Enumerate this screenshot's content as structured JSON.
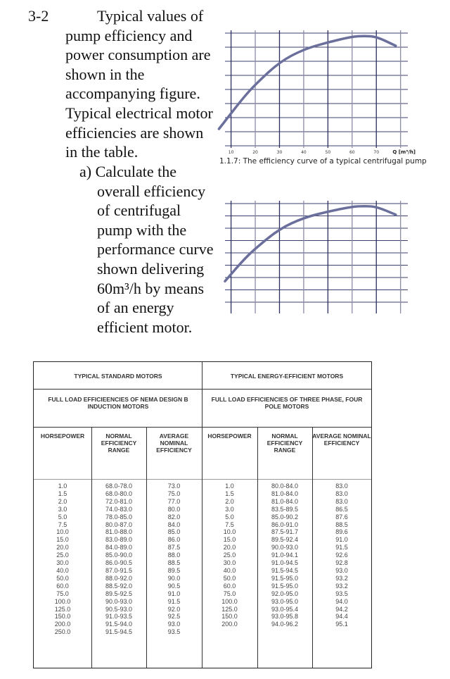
{
  "problem": {
    "number": "3-2",
    "lines": [
      "Typical values of",
      "pump efficiency and",
      "power consumption are",
      "shown in the",
      "accompanying figure.",
      "Typical electrical motor",
      "efficiencies are shown",
      "in the table."
    ],
    "part_a": [
      "a) Calculate the",
      "overall efficiency",
      "of centrifugal",
      "pump with the",
      "performance curve",
      "shown delivering",
      "60m³/h by means",
      "of an energy",
      "efficient motor."
    ]
  },
  "chart_data": [
    {
      "type": "line",
      "title": "",
      "caption": "1.1.7: The efficiency curve of a typical centrifugal pump",
      "xlabel": "Q [m³/h]",
      "xticks": [
        "10",
        "20",
        "30",
        "40",
        "50",
        "60",
        "70"
      ],
      "xlim": [
        7.5,
        83
      ],
      "ylim": [
        0,
        8
      ],
      "grid": true,
      "line_color": "#6b6f9c",
      "x": [
        5,
        7.5,
        15,
        20,
        30,
        40,
        50,
        60,
        65,
        70,
        78
      ],
      "y": [
        1.2,
        1.75,
        3.4,
        4.35,
        5.95,
        6.85,
        7.35,
        7.75,
        7.8,
        7.75,
        7.1
      ]
    },
    {
      "type": "line",
      "title": "",
      "xlim": [
        7.5,
        83
      ],
      "ylim": [
        0,
        8
      ],
      "grid": true,
      "line_color": "#6b6f9c",
      "x": [
        7.5,
        15,
        20,
        30,
        40,
        50,
        60,
        65,
        70,
        78
      ],
      "y": [
        1.7,
        3.4,
        4.35,
        5.95,
        6.85,
        7.35,
        7.75,
        7.8,
        7.75,
        7.1
      ]
    }
  ],
  "table": {
    "group_standard": "TYPICAL STANDARD MOTORS",
    "group_efficient": "TYPICAL ENERGY-EFFICIENT MOTORS",
    "sub_standard": "FULL LOAD EFFICIEENCIES OF NEMA DESIGN B INDUCTION MOTORS",
    "sub_efficient": "FULL LOAD EFFICIENCIES OF THREE PHASE, FOUR POLE MOTORS",
    "headers": [
      "HORSEPOWER",
      "NORMAL EFFICIENCY RANGE",
      "AVERAGE NOMINAL EFFICIENCY",
      "HORSEPOWER",
      "NORMAL EFFICIENCY RANGE",
      "AVERAGE NOMINAL EFFICIENCY"
    ],
    "standard": {
      "hp": [
        "1.0",
        "1.5",
        "2.0",
        "3.0",
        "5.0",
        "7.5",
        "10.0",
        "15.0",
        "20.0",
        "25.0",
        "30.0",
        "40.0",
        "50.0",
        "60.0",
        "75.0",
        "100.0",
        "125.0",
        "150.0",
        "200.0",
        "250.0"
      ],
      "range": [
        "68.0-78.0",
        "68.0-80.0",
        "72.0-81.0",
        "74.0-83.0",
        "78.0-85.0",
        "80.0-87.0",
        "81.0-88.0",
        "83.0-89.0",
        "84.0-89.0",
        "85.0-90.0",
        "86.0-90.5",
        "87.0-91.5",
        "88.0-92.0",
        "88.5-92.0",
        "89.5-92.5",
        "90.0-93.0",
        "90.5-93.0",
        "91.0-93.5",
        "91.5-94.0",
        "91.5-94.5"
      ],
      "avg": [
        "73.0",
        "75.0",
        "77.0",
        "80.0",
        "82.0",
        "84.0",
        "85.0",
        "86.0",
        "87.5",
        "88.0",
        "88.5",
        "89.5",
        "90.0",
        "90.5",
        "91.0",
        "91.5",
        "92.0",
        "92.5",
        "93.0",
        "93.5"
      ]
    },
    "efficient": {
      "hp": [
        "1.0",
        "1.5",
        "2.0",
        "3.0",
        "5.0",
        "7.5",
        "10.0",
        "15.0",
        "20.0",
        "25.0",
        "30.0",
        "40.0",
        "50.0",
        "60.0",
        "75.0",
        "100.0",
        "125.0",
        "150.0",
        "200.0"
      ],
      "range": [
        "80.0-84.0",
        "81.0-84.0",
        "81.0-84.0",
        "83.5-89.5",
        "85.0-90.2",
        "86.0-91.0",
        "87.5-91.7",
        "89.5-92.4",
        "90.0-93.0",
        "91.0-94.1",
        "91.0-94.5",
        "91.5-94.5",
        "91.5-95.0",
        "91.5-95.0",
        "92.0-95.0",
        "93.0-95.0",
        "93.0-95.4",
        "93.0-95.8",
        "94.0-96.2"
      ],
      "avg": [
        "83.0",
        "83.0",
        "83.0",
        "86.5",
        "87.6",
        "88.5",
        "89.6",
        "91.0",
        "91.5",
        "92.6",
        "92.8",
        "93.0",
        "93.2",
        "93.2",
        "93.5",
        "94.0",
        "94.2",
        "94.4",
        "95.1"
      ]
    }
  }
}
